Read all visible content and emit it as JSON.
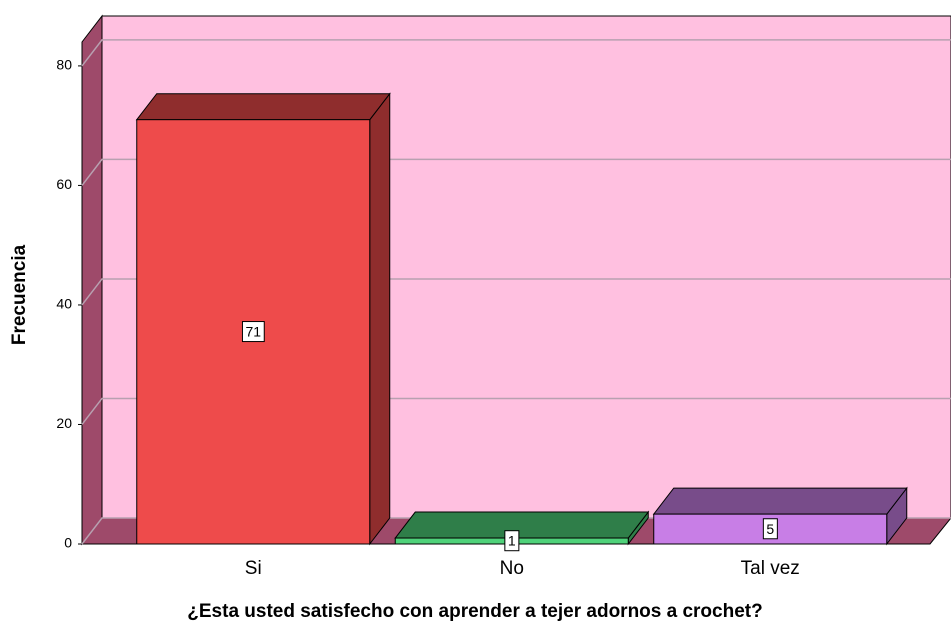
{
  "chart_data": {
    "type": "bar3d",
    "x_label": "¿Esta usted satisfecho con aprender a tejer adornos a crochet?",
    "y_label": "Frecuencia",
    "categories": [
      "Si",
      "No",
      "Tal vez"
    ],
    "values": [
      71,
      1,
      5
    ],
    "colors": [
      "#ee4b4b",
      "#4fd27a",
      "#c87ee6"
    ],
    "ylim": [
      0,
      84
    ],
    "yticks": [
      0,
      20,
      40,
      60,
      80
    ],
    "grid": true
  }
}
